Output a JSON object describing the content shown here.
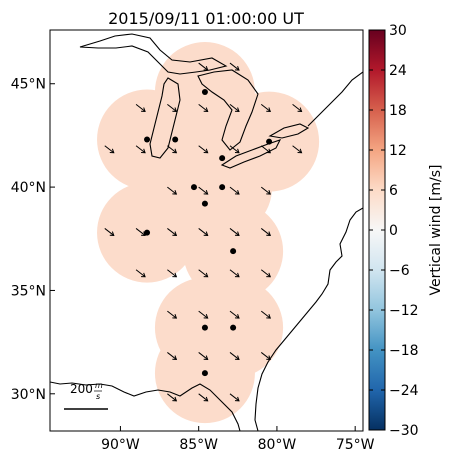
{
  "title": "2015/09/11 01:00:00 UT",
  "map": {
    "lon_range": [
      -94.5,
      -74.5
    ],
    "lat_range": [
      28.2,
      47.6
    ],
    "lat_ticks": [
      {
        "value": 45,
        "label": "45°N"
      },
      {
        "value": 40,
        "label": "40°N"
      },
      {
        "value": 35,
        "label": "35°N"
      },
      {
        "value": 30,
        "label": "30°N"
      }
    ],
    "lon_ticks": [
      {
        "value": -90,
        "label": "90°W"
      },
      {
        "value": -85,
        "label": "85°W"
      },
      {
        "value": -80,
        "label": "80°W"
      },
      {
        "value": -75,
        "label": "75°W"
      }
    ],
    "field_color": "#fcdccb",
    "field_value_m_s": 5.5,
    "radar_sites": [
      {
        "lon": -84.6,
        "lat": 44.6
      },
      {
        "lon": -88.3,
        "lat": 42.3
      },
      {
        "lon": -86.5,
        "lat": 42.3
      },
      {
        "lon": -83.5,
        "lat": 41.4
      },
      {
        "lon": -80.5,
        "lat": 42.2
      },
      {
        "lon": -85.3,
        "lat": 40.0
      },
      {
        "lon": -83.5,
        "lat": 40.0
      },
      {
        "lon": -84.6,
        "lat": 39.2
      },
      {
        "lon": -88.3,
        "lat": 37.8
      },
      {
        "lon": -82.8,
        "lat": 36.9
      },
      {
        "lon": -84.6,
        "lat": 33.2
      },
      {
        "lon": -82.8,
        "lat": 33.2
      },
      {
        "lon": -84.6,
        "lat": 31.0
      }
    ],
    "wind_vector_dir": "southeast",
    "scale_bar": {
      "label": "200",
      "unit_num": "m",
      "unit_den": "s"
    }
  },
  "colorbar": {
    "label": "Vertical wind [m/s]",
    "min": -30,
    "max": 30,
    "ticks": [
      30,
      24,
      18,
      12,
      6,
      0,
      -6,
      -12,
      -18,
      -24,
      -30
    ],
    "tick_labels": [
      "30",
      "24",
      "18",
      "12",
      "6",
      "0",
      "−6",
      "−12",
      "−18",
      "−24",
      "−30"
    ],
    "colormap": "RdBu_r",
    "colors": [
      "#053061",
      "#2166ac",
      "#4393c3",
      "#92c5de",
      "#d1e5f0",
      "#f7f7f7",
      "#fddbc7",
      "#f4a582",
      "#d6604d",
      "#b2182b",
      "#67001f"
    ]
  }
}
